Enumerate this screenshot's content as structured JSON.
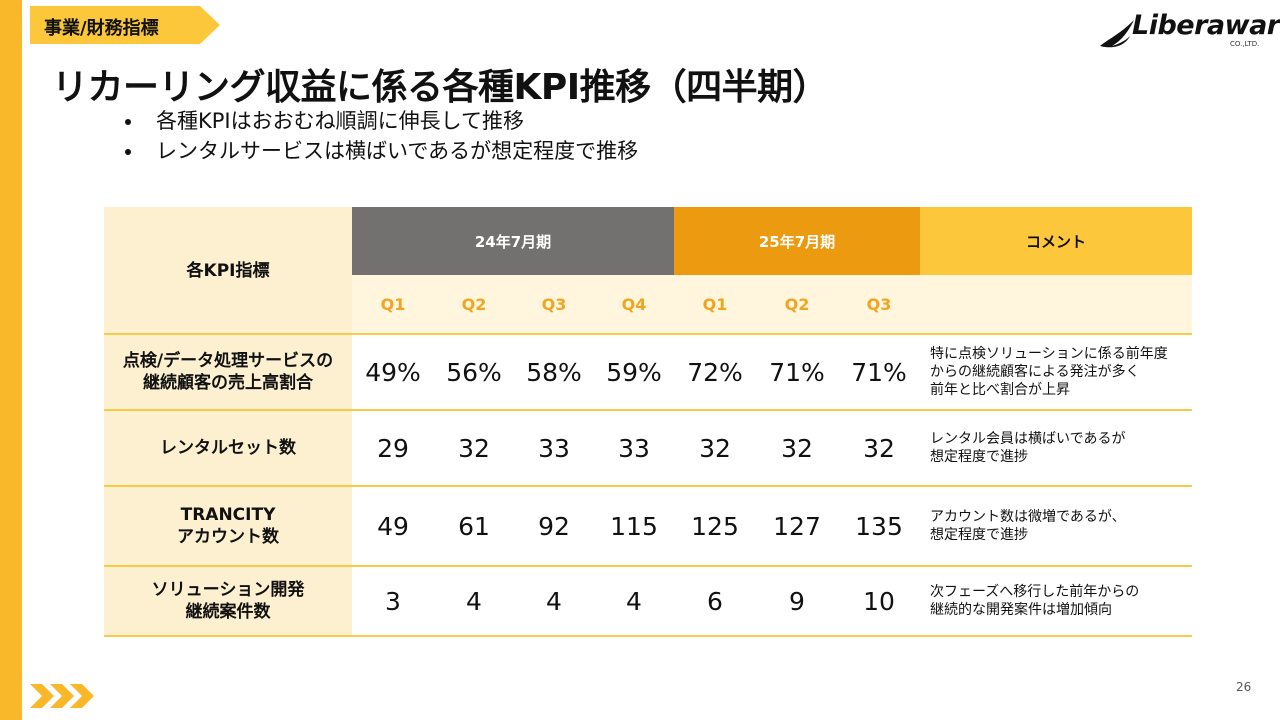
{
  "header": {
    "section_tag": "事業/財務指標",
    "logo_text": "Liberaware",
    "logo_sub": "CO.,LTD.",
    "title": "リカーリング収益に係る各種KPI推移（四半期）"
  },
  "bullets": [
    "各種KPIはおおむね順調に伸長して推移",
    "レンタルサービスは横ばいであるが想定程度で推移"
  ],
  "table": {
    "corner_label": "各KPI指標",
    "period_24": "24年7月期",
    "period_25": "25年7月期",
    "comment_header": "コメント",
    "quarters": [
      "Q1",
      "Q2",
      "Q3",
      "Q4",
      "Q1",
      "Q2",
      "Q3"
    ],
    "rows": [
      {
        "label_line1": "点検/データ処理サービスの",
        "label_line2": "継続顧客の売上高割合",
        "values": [
          "49%",
          "56%",
          "58%",
          "59%",
          "72%",
          "71%",
          "71%"
        ],
        "comment_lines": [
          "特に点検ソリューションに係る前年度",
          "からの継続顧客による発注が多く",
          "前年と比べ割合が上昇"
        ]
      },
      {
        "label_line1": "レンタルセット数",
        "label_line2": "",
        "values": [
          "29",
          "32",
          "33",
          "33",
          "32",
          "32",
          "32"
        ],
        "comment_lines": [
          "レンタル会員は横ばいであるが",
          "想定程度で進捗"
        ]
      },
      {
        "label_line1": "TRANCITY",
        "label_line2": "アカウント数",
        "values": [
          "49",
          "61",
          "92",
          "115",
          "125",
          "127",
          "135"
        ],
        "comment_lines": [
          "アカウント数は微増であるが、",
          "想定程度で進捗"
        ]
      },
      {
        "label_line1": "ソリューション開発",
        "label_line2": "継続案件数",
        "values": [
          "3",
          "4",
          "4",
          "4",
          "6",
          "9",
          "10"
        ],
        "comment_lines": [
          "次フェーズへ移行した前年からの",
          "継続的な開発案件は増加傾向"
        ]
      }
    ]
  },
  "footer": {
    "page_number": "26"
  },
  "colors": {
    "accent_yellow": "#fcc73a",
    "sidebar_yellow": "#f9b82a",
    "year24_gray": "#737070",
    "year25_orange": "#ec9a0f",
    "quarter_text": "#f0a520"
  }
}
